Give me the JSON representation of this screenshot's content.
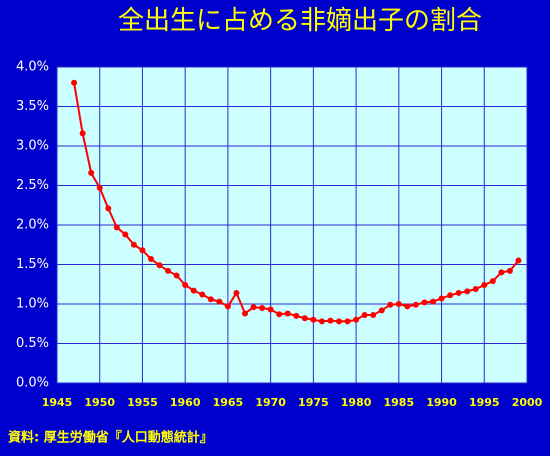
{
  "chart_data": {
    "type": "line",
    "title": "全出生に占める非嫡出子の割合",
    "source": "資料: 厚生労働省『人口動態統計』",
    "x": [
      1947,
      1948,
      1949,
      1950,
      1951,
      1952,
      1953,
      1954,
      1955,
      1956,
      1957,
      1958,
      1959,
      1960,
      1961,
      1962,
      1963,
      1964,
      1965,
      1966,
      1967,
      1968,
      1969,
      1970,
      1971,
      1972,
      1973,
      1974,
      1975,
      1976,
      1977,
      1978,
      1979,
      1980,
      1981,
      1982,
      1983,
      1984,
      1985,
      1986,
      1987,
      1988,
      1989,
      1990,
      1991,
      1992,
      1993,
      1994,
      1995,
      1996,
      1997,
      1998,
      1999
    ],
    "values": [
      3.8,
      3.16,
      2.66,
      2.47,
      2.21,
      1.97,
      1.88,
      1.75,
      1.68,
      1.57,
      1.49,
      1.42,
      1.36,
      1.24,
      1.17,
      1.12,
      1.06,
      1.03,
      0.97,
      1.14,
      0.88,
      0.96,
      0.95,
      0.93,
      0.87,
      0.88,
      0.85,
      0.82,
      0.8,
      0.78,
      0.79,
      0.78,
      0.78,
      0.8,
      0.86,
      0.86,
      0.92,
      0.99,
      1.0,
      0.97,
      0.99,
      1.02,
      1.03,
      1.07,
      1.11,
      1.14,
      1.16,
      1.19,
      1.24,
      1.29,
      1.4,
      1.42,
      1.55
    ],
    "color": "#ff0000",
    "xlim": [
      1945,
      2000
    ],
    "xticks": [
      1945,
      1950,
      1955,
      1960,
      1965,
      1970,
      1975,
      1980,
      1985,
      1990,
      1995,
      2000
    ],
    "ylim": [
      0,
      4
    ],
    "yticks": [
      {
        "value": 0,
        "label": "0.0%"
      },
      {
        "value": 0.5,
        "label": "0.5%"
      },
      {
        "value": 1,
        "label": "1.0%"
      },
      {
        "value": 1.5,
        "label": "1.5%"
      },
      {
        "value": 2,
        "label": "2.0%"
      },
      {
        "value": 2.5,
        "label": "2.5%"
      },
      {
        "value": 3,
        "label": "3.0%"
      },
      {
        "value": 3.5,
        "label": "3.5%"
      },
      {
        "value": 4,
        "label": "4.0%"
      }
    ],
    "grid": true
  }
}
